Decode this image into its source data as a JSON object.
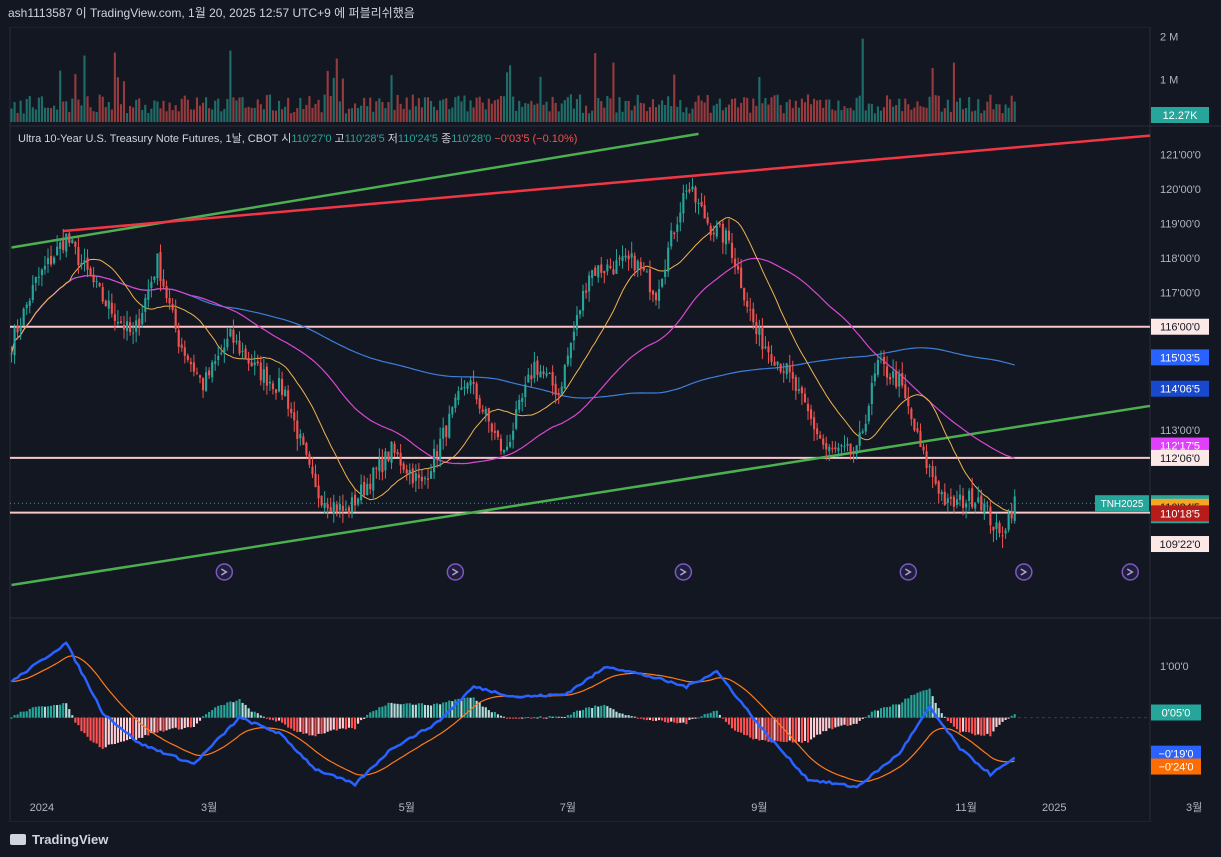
{
  "header": {
    "publish_text": "ash1113587 이 TradingView.com, 1월 20, 2025 12:57 UTC+9 에 퍼블리쉬했음"
  },
  "legend": {
    "symbol_text": "Ultra 10-Year U.S. Treasury Note Futures, 1날, CBOT",
    "open_label": "시",
    "open_value": "110'27'0",
    "high_label": "고",
    "high_value": "110'28'5",
    "low_label": "저",
    "low_value": "110'24'5",
    "close_label": "종",
    "close_value": "110'28'0",
    "change_value": "−0'03'5 (−0.10%)"
  },
  "footer": {
    "brand": "TradingView"
  },
  "colors": {
    "background": "#131722",
    "up": "#26a69a",
    "down": "#ef5350",
    "trend_green": "#4caf50",
    "trend_red": "#f23645",
    "ma_orange": "#f0b34d",
    "ma_magenta": "#d946d1",
    "ma_blue": "#3d7fd9",
    "hline": "#f8c8c8"
  },
  "chart_data": {
    "type": "candlestick",
    "x_ticks": [
      "2024",
      "3월",
      "5월",
      "7월",
      "9월",
      "11월",
      "2025",
      "3월"
    ],
    "price_axis": {
      "range": [
        108.5,
        121.8
      ],
      "ticks": [
        "121'00'0",
        "120'00'0",
        "119'00'0",
        "118'00'0",
        "117'00'0",
        "113'00'0"
      ]
    },
    "volume_axis": {
      "range": [
        0,
        2.2
      ],
      "unit": "M",
      "ticks": [
        "2 M",
        "1 M"
      ],
      "last_value": "12.27K"
    },
    "price_labels": [
      {
        "text": "116'00'0",
        "price": 116.0,
        "style": "hline"
      },
      {
        "text": "115'03'5",
        "price": 115.11,
        "style": "blue"
      },
      {
        "text": "114'06'5",
        "price": 114.2,
        "style": "navy"
      },
      {
        "text": "112'17'5",
        "price": 112.55,
        "style": "magenta"
      },
      {
        "text": "112'06'0",
        "price": 112.19,
        "style": "hline"
      },
      {
        "text": "110'28'0",
        "sub": "1d 19h",
        "price": 110.875,
        "style": "last",
        "symbol_tag": "TNH2025"
      },
      {
        "text": "110'24'5",
        "price": 110.77,
        "style": "orange"
      },
      {
        "text": "110'18'5",
        "price": 110.58,
        "style": "red"
      },
      {
        "text": "109'22'0",
        "price": 109.69,
        "style": "hline"
      }
    ],
    "horizontal_lines": [
      116.0,
      112.19,
      110.6
    ],
    "trendlines": [
      {
        "color": "green",
        "from": {
          "t": 0,
          "price": 118.3
        },
        "to": {
          "t": 226,
          "price": 121.6
        }
      },
      {
        "color": "red",
        "from": {
          "t": 17,
          "price": 118.78
        },
        "to": {
          "t": 400,
          "price": 121.55
        }
      },
      {
        "color": "green",
        "from": {
          "t": 0,
          "price": 108.5
        },
        "to": {
          "t": 400,
          "price": 113.7
        }
      }
    ],
    "anchors": [
      {
        "t": 0,
        "p": 115.5
      },
      {
        "t": 8,
        "p": 117.3
      },
      {
        "t": 18,
        "p": 118.6
      },
      {
        "t": 30,
        "p": 116.8
      },
      {
        "t": 40,
        "p": 115.7
      },
      {
        "t": 48,
        "p": 117.9
      },
      {
        "t": 55,
        "p": 115.6
      },
      {
        "t": 63,
        "p": 114.3
      },
      {
        "t": 72,
        "p": 115.7
      },
      {
        "t": 80,
        "p": 114.8
      },
      {
        "t": 90,
        "p": 114.1
      },
      {
        "t": 100,
        "p": 111.2
      },
      {
        "t": 110,
        "p": 110.6
      },
      {
        "t": 125,
        "p": 112.4
      },
      {
        "t": 135,
        "p": 111.4
      },
      {
        "t": 150,
        "p": 114.5
      },
      {
        "t": 162,
        "p": 112.3
      },
      {
        "t": 172,
        "p": 114.9
      },
      {
        "t": 180,
        "p": 114.1
      },
      {
        "t": 190,
        "p": 117.6
      },
      {
        "t": 205,
        "p": 117.9
      },
      {
        "t": 212,
        "p": 117.0
      },
      {
        "t": 222,
        "p": 120.1
      },
      {
        "t": 230,
        "p": 118.9
      },
      {
        "t": 236,
        "p": 118.5
      },
      {
        "t": 245,
        "p": 115.8
      },
      {
        "t": 255,
        "p": 114.7
      },
      {
        "t": 268,
        "p": 112.4
      },
      {
        "t": 278,
        "p": 112.3
      },
      {
        "t": 285,
        "p": 114.9
      },
      {
        "t": 292,
        "p": 114.4
      },
      {
        "t": 300,
        "p": 112.2
      },
      {
        "t": 308,
        "p": 110.8
      },
      {
        "t": 318,
        "p": 111.1
      },
      {
        "t": 325,
        "p": 109.9
      },
      {
        "t": 330,
        "p": 110.9
      }
    ],
    "last_bar_t": 330,
    "future_bars": 45,
    "event_markers_t": [
      70,
      146,
      221,
      295,
      333,
      368
    ],
    "macd": {
      "range": [
        -1.6,
        1.8
      ],
      "ticks": [
        "1'00'0"
      ],
      "last": {
        "histogram": "0'05'0",
        "macd": "−0'19'0",
        "signal": "−0'24'0"
      },
      "anchors": [
        {
          "t": 0,
          "v": 0.7
        },
        {
          "t": 18,
          "v": 1.45
        },
        {
          "t": 30,
          "v": 0.1
        },
        {
          "t": 42,
          "v": -0.5
        },
        {
          "t": 60,
          "v": -0.9
        },
        {
          "t": 75,
          "v": 0.0
        },
        {
          "t": 88,
          "v": -0.3
        },
        {
          "t": 100,
          "v": -1.0
        },
        {
          "t": 113,
          "v": -1.3
        },
        {
          "t": 125,
          "v": -0.6
        },
        {
          "t": 140,
          "v": -0.1
        },
        {
          "t": 152,
          "v": 0.6
        },
        {
          "t": 166,
          "v": 0.4
        },
        {
          "t": 182,
          "v": 0.45
        },
        {
          "t": 196,
          "v": 1.0
        },
        {
          "t": 210,
          "v": 0.8
        },
        {
          "t": 222,
          "v": 0.6
        },
        {
          "t": 232,
          "v": 0.9
        },
        {
          "t": 248,
          "v": -0.3
        },
        {
          "t": 262,
          "v": -1.2
        },
        {
          "t": 278,
          "v": -1.35
        },
        {
          "t": 292,
          "v": -0.7
        },
        {
          "t": 302,
          "v": 0.2
        },
        {
          "t": 312,
          "v": -0.6
        },
        {
          "t": 322,
          "v": -1.1
        },
        {
          "t": 330,
          "v": -0.8
        }
      ]
    }
  }
}
